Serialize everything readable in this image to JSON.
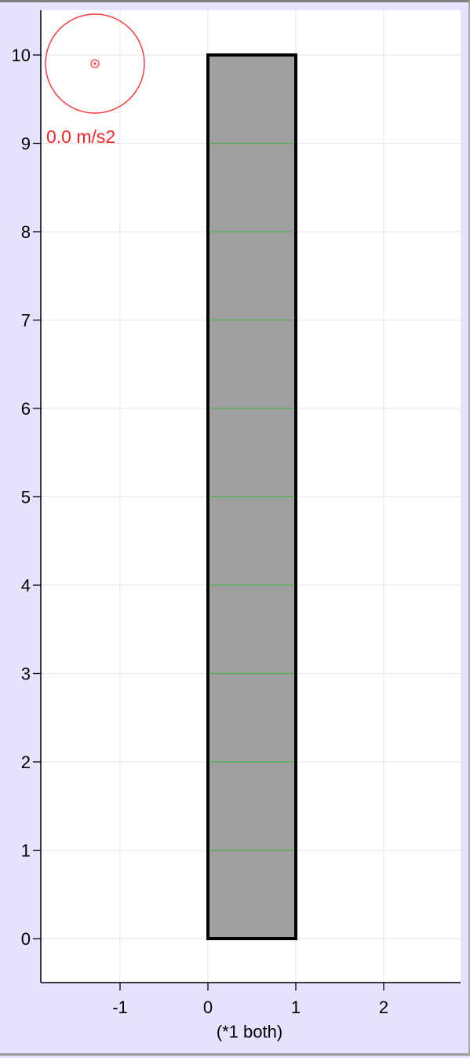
{
  "plot": {
    "x_axis_caption": "(*1 both)",
    "x_ticks": [
      -1,
      0,
      1,
      2
    ],
    "y_ticks": [
      0,
      1,
      2,
      3,
      4,
      5,
      6,
      7,
      8,
      9,
      10
    ],
    "x_range": [
      -1.9,
      2.9
    ],
    "y_range": [
      -0.5,
      10.5
    ]
  },
  "beam": {
    "x_range": [
      0,
      1
    ],
    "y_range": [
      0,
      10
    ],
    "segment_lines_y": [
      1,
      2,
      3,
      4,
      5,
      6,
      7,
      8,
      9
    ],
    "fill_color": "#a0a0a0",
    "segment_line_color": "#4caf50"
  },
  "accelerometer": {
    "label": "0.0 m/s2",
    "color": "#ff3b3b"
  },
  "colors": {
    "outer_background": "#e4e2fc",
    "plot_background": "#ffffff",
    "grid": "#e6e6e6"
  }
}
